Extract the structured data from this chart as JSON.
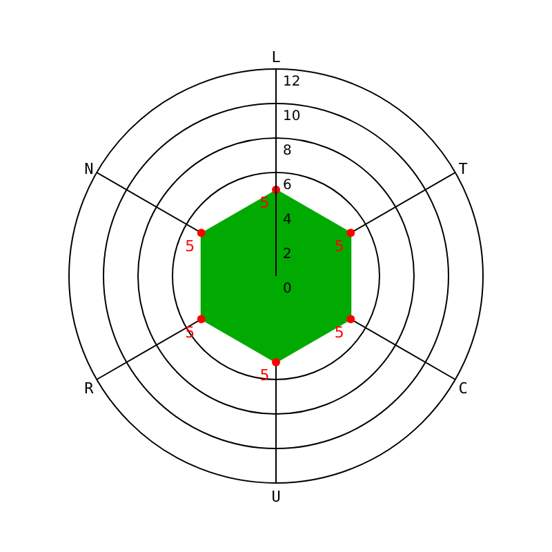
{
  "chart_data": {
    "type": "radar",
    "categories": [
      "L",
      "T",
      "C",
      "U",
      "R",
      "N"
    ],
    "series": [
      {
        "color": "#00aa00",
        "values": [
          5,
          5,
          5,
          5,
          5,
          5
        ]
      }
    ],
    "ylim": [
      0,
      12
    ],
    "yticks": [
      0,
      2,
      4,
      6,
      8,
      10,
      12
    ],
    "grid": true,
    "data_labels": true,
    "marker": "circle"
  }
}
